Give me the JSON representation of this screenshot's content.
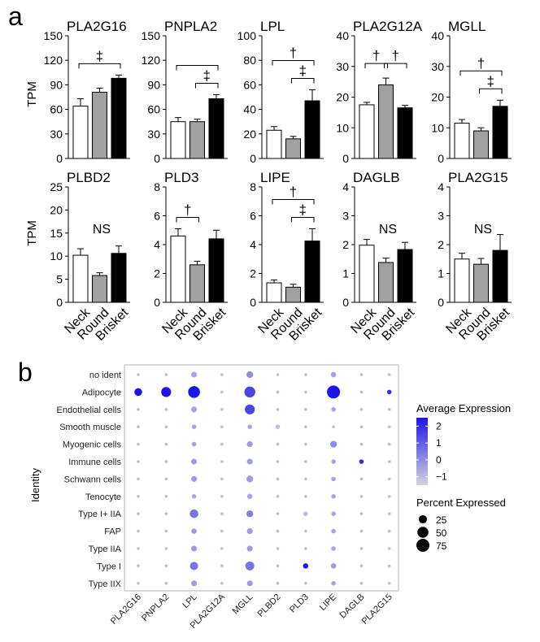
{
  "panel_a": {
    "label": "a",
    "ylabel": "TPM",
    "xcats": [
      "Neck",
      "Round",
      "Brisket"
    ],
    "bar_fills": [
      "#ffffff",
      "#a0a0a0",
      "#000000"
    ]
  },
  "panel_b": {
    "label": "b",
    "ylabel": "Identity",
    "legend_color_title": "Average Expression",
    "legend_color_ticks": [
      "2",
      "1",
      "0",
      "−1"
    ],
    "legend_size_title": "Percent Expressed",
    "legend_size_ticks": [
      "25",
      "50",
      "75"
    ],
    "color_low": "#d4d4df",
    "color_high": "#1c16e6"
  },
  "chart_data": [
    {
      "type": "bar",
      "title": "PLA2G16",
      "categories": [
        "Neck",
        "Round",
        "Brisket"
      ],
      "values": [
        64,
        81,
        98
      ],
      "errors": [
        9,
        5,
        4
      ],
      "ylim": [
        0,
        150
      ],
      "ticks": [
        "0",
        "30",
        "60",
        "90",
        "120",
        "150"
      ],
      "annotations": [
        {
          "text": "‡",
          "from": 0,
          "to": 2
        }
      ],
      "ns": ""
    },
    {
      "type": "bar",
      "title": "PNPLA2",
      "categories": [
        "Neck",
        "Round",
        "Brisket"
      ],
      "values": [
        45,
        45,
        73
      ],
      "errors": [
        5,
        3,
        5
      ],
      "ylim": [
        0,
        150
      ],
      "ticks": [
        "0",
        "30",
        "60",
        "90",
        "120",
        "150"
      ],
      "annotations": [
        {
          "text": "‡",
          "from": 1,
          "to": 2
        },
        {
          "text": "",
          "from": 0,
          "to": 2
        }
      ],
      "ns": ""
    },
    {
      "type": "bar",
      "title": "LPL",
      "categories": [
        "Neck",
        "Round",
        "Brisket"
      ],
      "values": [
        23,
        16,
        47
      ],
      "errors": [
        3,
        2,
        9
      ],
      "ylim": [
        0,
        100
      ],
      "ticks": [
        "0",
        "20",
        "40",
        "60",
        "80",
        "100"
      ],
      "annotations": [
        {
          "text": "†",
          "from": 0,
          "to": 2
        },
        {
          "text": "‡",
          "from": 1,
          "to": 2
        }
      ],
      "ns": ""
    },
    {
      "type": "bar",
      "title": "PLA2G12A",
      "categories": [
        "Neck",
        "Round",
        "Brisket"
      ],
      "values": [
        17.5,
        24,
        16.5
      ],
      "errors": [
        0.8,
        2.2,
        0.8
      ],
      "ylim": [
        0,
        40
      ],
      "ticks": [
        "0",
        "10",
        "20",
        "30",
        "40"
      ],
      "annotations": [
        {
          "text": "†",
          "from": 0,
          "to": 1
        },
        {
          "text": "†",
          "from": 1,
          "to": 2
        }
      ],
      "ns": ""
    },
    {
      "type": "bar",
      "title": "MGLL",
      "categories": [
        "Neck",
        "Round",
        "Brisket"
      ],
      "values": [
        11.5,
        9,
        17
      ],
      "errors": [
        1.2,
        1,
        2
      ],
      "ylim": [
        0,
        40
      ],
      "ticks": [
        "0",
        "10",
        "20",
        "30",
        "40"
      ],
      "annotations": [
        {
          "text": "†",
          "from": 0,
          "to": 2
        },
        {
          "text": "‡",
          "from": 1,
          "to": 2
        }
      ],
      "ns": ""
    },
    {
      "type": "bar",
      "title": "PLBD2",
      "categories": [
        "Neck",
        "Round",
        "Brisket"
      ],
      "values": [
        10.2,
        5.8,
        10.6
      ],
      "errors": [
        1.4,
        0.6,
        1.6
      ],
      "ylim": [
        0,
        25
      ],
      "ticks": [
        "0",
        "5",
        "10",
        "15",
        "20",
        "25"
      ],
      "annotations": [],
      "ns": "NS"
    },
    {
      "type": "bar",
      "title": "PLD3",
      "categories": [
        "Neck",
        "Round",
        "Brisket"
      ],
      "values": [
        4.6,
        2.6,
        4.4
      ],
      "errors": [
        0.5,
        0.25,
        0.6
      ],
      "ylim": [
        0,
        8
      ],
      "ticks": [
        "0",
        "2",
        "4",
        "6",
        "8"
      ],
      "annotations": [
        {
          "text": "†",
          "from": 0,
          "to": 1
        }
      ],
      "ns": ""
    },
    {
      "type": "bar",
      "title": "LIPE",
      "categories": [
        "Neck",
        "Round",
        "Brisket"
      ],
      "values": [
        1.35,
        1.05,
        4.25
      ],
      "errors": [
        0.2,
        0.2,
        0.85
      ],
      "ylim": [
        0,
        8
      ],
      "ticks": [
        "0",
        "2",
        "4",
        "6",
        "8"
      ],
      "annotations": [
        {
          "text": "†",
          "from": 0,
          "to": 2
        },
        {
          "text": "‡",
          "from": 1,
          "to": 2
        }
      ],
      "ns": ""
    },
    {
      "type": "bar",
      "title": "DAGLB",
      "categories": [
        "Neck",
        "Round",
        "Brisket"
      ],
      "values": [
        1.98,
        1.38,
        1.83
      ],
      "errors": [
        0.2,
        0.15,
        0.25
      ],
      "ylim": [
        0,
        4
      ],
      "ticks": [
        "0",
        "1",
        "2",
        "3",
        "4"
      ],
      "annotations": [],
      "ns": "NS"
    },
    {
      "type": "bar",
      "title": "PLA2G15",
      "categories": [
        "Neck",
        "Round",
        "Brisket"
      ],
      "values": [
        1.5,
        1.32,
        1.8
      ],
      "errors": [
        0.2,
        0.2,
        0.55
      ],
      "ylim": [
        0,
        4
      ],
      "ticks": [
        "0",
        "1",
        "2",
        "3",
        "4"
      ],
      "annotations": [],
      "ns": "NS"
    },
    {
      "type": "dotplot",
      "xlabel": "",
      "ylabel": "Identity",
      "genes": [
        "PLA2G16",
        "PNPLA2",
        "LPL",
        "PLA2G12A",
        "MGLL",
        "PLBD2",
        "PLD3",
        "LIPE",
        "DAGLB",
        "PLA2G15"
      ],
      "identities": [
        "no ident",
        "Adipocyte",
        "Endothelial cells",
        "Smooth muscle",
        "Myogenic cells",
        "Immune cells",
        "Schwann cells",
        "Tenocyte",
        "Type I+ IIA",
        "FAP",
        "Type IIA",
        "Type I",
        "Type IIX"
      ],
      "pct": [
        [
          1,
          1,
          10,
          1,
          15,
          1,
          1,
          8,
          1,
          1
        ],
        [
          22,
          40,
          60,
          1,
          50,
          1,
          1,
          75,
          1,
          5
        ],
        [
          1,
          1,
          10,
          1,
          40,
          1,
          1,
          5,
          1,
          1
        ],
        [
          1,
          1,
          5,
          1,
          5,
          5,
          1,
          1,
          1,
          1
        ],
        [
          1,
          1,
          5,
          1,
          10,
          1,
          1,
          15,
          1,
          1
        ],
        [
          1,
          1,
          10,
          1,
          10,
          1,
          1,
          5,
          5,
          1
        ],
        [
          1,
          1,
          10,
          1,
          15,
          1,
          1,
          5,
          1,
          1
        ],
        [
          1,
          1,
          5,
          1,
          8,
          1,
          1,
          5,
          1,
          1
        ],
        [
          1,
          1,
          28,
          1,
          15,
          1,
          5,
          5,
          1,
          1
        ],
        [
          1,
          1,
          8,
          1,
          10,
          1,
          1,
          5,
          1,
          1
        ],
        [
          1,
          1,
          10,
          1,
          10,
          1,
          1,
          5,
          1,
          1
        ],
        [
          1,
          1,
          25,
          1,
          30,
          1,
          8,
          8,
          1,
          1
        ],
        [
          1,
          1,
          10,
          1,
          10,
          1,
          1,
          5,
          1,
          1
        ]
      ],
      "avg": [
        [
          -1,
          -1,
          -0.5,
          -1,
          0,
          -1,
          -1,
          -0.5,
          -1,
          -1
        ],
        [
          2.5,
          2.5,
          2.5,
          -1,
          1.5,
          -1,
          -1,
          2.5,
          -1,
          2
        ],
        [
          -1,
          -1,
          -0.5,
          -1,
          1.5,
          -1,
          -1,
          -0.5,
          -1,
          -1
        ],
        [
          -1,
          -1,
          -0.5,
          -1,
          -0.5,
          -1,
          -1,
          -1,
          -1,
          -1
        ],
        [
          -1,
          -1,
          -0.5,
          -1,
          -0.3,
          -1,
          -1,
          0,
          -1,
          -1
        ],
        [
          -1,
          -1,
          -0.3,
          -1,
          -0.3,
          -1,
          -1,
          -0.5,
          2,
          -1
        ],
        [
          -1,
          -1,
          -0.3,
          -1,
          -0.3,
          -1,
          -1,
          -0.5,
          -1,
          -1
        ],
        [
          -1,
          -1,
          -0.5,
          -1,
          -0.5,
          -1,
          -1,
          -0.5,
          -1,
          -1
        ],
        [
          -1,
          -1,
          0.5,
          -1,
          0.3,
          -1,
          -1,
          -0.5,
          -1,
          -1
        ],
        [
          -1,
          -1,
          -0.3,
          -1,
          -0.3,
          -1,
          -1,
          -0.5,
          -1,
          -1
        ],
        [
          -1,
          -1,
          -0.3,
          -1,
          -0.3,
          -1,
          -1,
          -0.5,
          -1,
          -1
        ],
        [
          -1,
          -1,
          0.5,
          -1,
          0.5,
          -1,
          2.5,
          -0.3,
          -1,
          -1
        ],
        [
          -1,
          -1,
          -0.3,
          -1,
          -0.3,
          -1,
          -1,
          -0.5,
          -1,
          -1
        ]
      ],
      "color_range": [
        -1.5,
        2.5
      ],
      "legend_color_ticks": [
        2,
        1,
        0,
        -1
      ],
      "legend_size_ticks": [
        25,
        50,
        75
      ]
    }
  ]
}
